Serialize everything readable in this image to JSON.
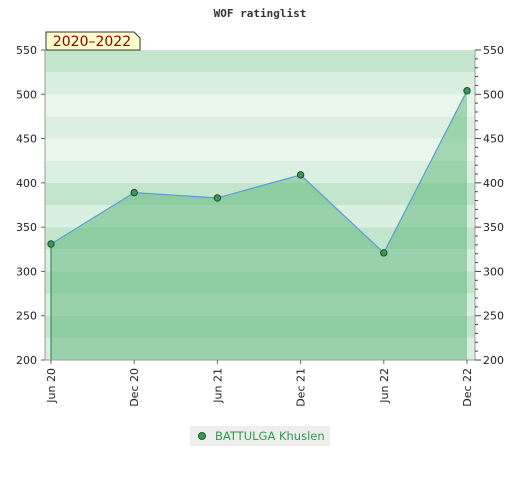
{
  "chart_data": {
    "type": "area",
    "title": "WOF ratinglist",
    "period_label": "2020–2022",
    "xlabel": "",
    "ylabel": "",
    "ylim": [
      200,
      550
    ],
    "y_ticks": [
      200,
      250,
      300,
      350,
      400,
      450,
      500,
      550
    ],
    "categories": [
      "Jun 20",
      "Dec 20",
      "Jun 21",
      "Dec 21",
      "Jun 22",
      "Dec 22"
    ],
    "series": [
      {
        "name": "BATTULGA Khuslen",
        "values": [
          331,
          389,
          383,
          409,
          321,
          504
        ]
      }
    ],
    "legend_position": "bottom",
    "grid": true,
    "colors": {
      "line": "#5b9bd5",
      "fill": "#4caf6a",
      "marker": "#3a9a55",
      "label_box": "#ffffcc"
    }
  }
}
